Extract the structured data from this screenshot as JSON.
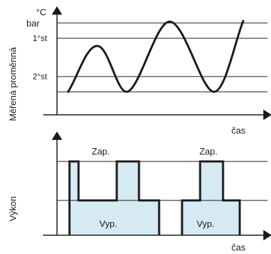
{
  "top_plot": {
    "unit_celsius": "°C",
    "unit_bar": "bar",
    "threshold_1": "1°st",
    "threshold_2": "2°st",
    "y_label": "Měřená proměnná",
    "x_label": "čas"
  },
  "bottom_plot": {
    "on_label_1": "Zap.",
    "on_label_2": "Zap.",
    "off_label_1": "Vyp.",
    "off_label_2": "Vyp.",
    "y_label": "Výkon",
    "x_label": "čas"
  },
  "colors": {
    "fill": "#d6eaf4",
    "line": "#1a1a1a"
  }
}
